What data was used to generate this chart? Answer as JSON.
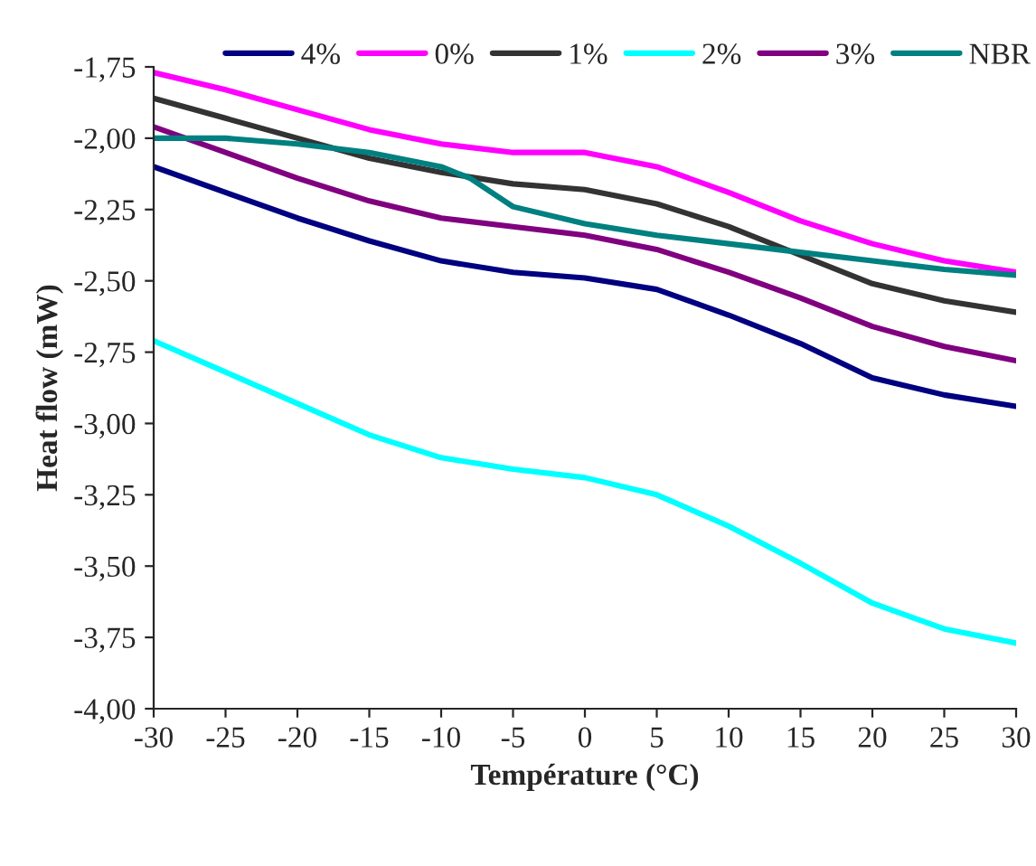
{
  "chart_data": {
    "type": "line",
    "xlabel": "Température (°C)",
    "ylabel": "Heat flow (mW)",
    "x": [
      -30,
      -25,
      -20,
      -15,
      -10,
      -5,
      0,
      5,
      10,
      15,
      20,
      25,
      30
    ],
    "series": [
      {
        "name": "4%",
        "color": "#000080",
        "values": [
          -2.1,
          -2.19,
          -2.28,
          -2.36,
          -2.43,
          -2.47,
          -2.49,
          -2.53,
          -2.62,
          -2.72,
          -2.84,
          -2.9,
          -2.94
        ]
      },
      {
        "name": "0%",
        "color": "#ff00ff",
        "values": [
          -1.77,
          -1.83,
          -1.9,
          -1.97,
          -2.02,
          -2.05,
          -2.05,
          -2.1,
          -2.19,
          -2.29,
          -2.37,
          -2.43,
          -2.47
        ]
      },
      {
        "name": "1%",
        "color": "#333333",
        "values": [
          -1.86,
          -1.93,
          -2.0,
          -2.07,
          -2.12,
          -2.16,
          -2.18,
          -2.23,
          -2.31,
          -2.41,
          -2.51,
          -2.57,
          -2.61
        ]
      },
      {
        "name": "2%",
        "color": "#00ffff",
        "values": [
          -2.71,
          -2.82,
          -2.93,
          -3.04,
          -3.12,
          -3.16,
          -3.19,
          -3.25,
          -3.36,
          -3.49,
          -3.63,
          -3.72,
          -3.77
        ]
      },
      {
        "name": "3%",
        "color": "#800080",
        "values": [
          -1.96,
          -2.05,
          -2.14,
          -2.22,
          -2.28,
          -2.31,
          -2.34,
          -2.39,
          -2.47,
          -2.56,
          -2.66,
          -2.73,
          -2.78
        ]
      },
      {
        "name": "NBR",
        "color": "#008080",
        "x": [
          -30,
          -25,
          -20,
          -15,
          -10,
          -8,
          -5,
          0,
          5,
          10,
          15,
          20,
          25,
          30
        ],
        "values": [
          -2.0,
          -2.0,
          -2.02,
          -2.05,
          -2.1,
          -2.14,
          -2.24,
          -2.3,
          -2.34,
          -2.37,
          -2.4,
          -2.43,
          -2.46,
          -2.48
        ]
      }
    ],
    "xlim": [
      -30,
      30
    ],
    "xticks": [
      -30,
      -25,
      -20,
      -15,
      -10,
      -5,
      0,
      5,
      10,
      15,
      20,
      25,
      30
    ],
    "ylim": [
      -4,
      -1.75
    ],
    "yticks": [
      {
        "value": -4,
        "label": "-4,00"
      },
      {
        "value": -3.75,
        "label": "-3,75"
      },
      {
        "value": -3.5,
        "label": "-3,50"
      },
      {
        "value": -3.25,
        "label": "-3,25"
      },
      {
        "value": -3,
        "label": "-3,00"
      },
      {
        "value": -2.75,
        "label": "-2,75"
      },
      {
        "value": -2.5,
        "label": "-2,50"
      },
      {
        "value": -2.25,
        "label": "-2,25"
      },
      {
        "value": -2,
        "label": "-2,00"
      },
      {
        "value": -1.75,
        "label": "-1,75"
      }
    ],
    "grid": false,
    "legend": "top",
    "marker": "none",
    "line_style": "solid"
  }
}
